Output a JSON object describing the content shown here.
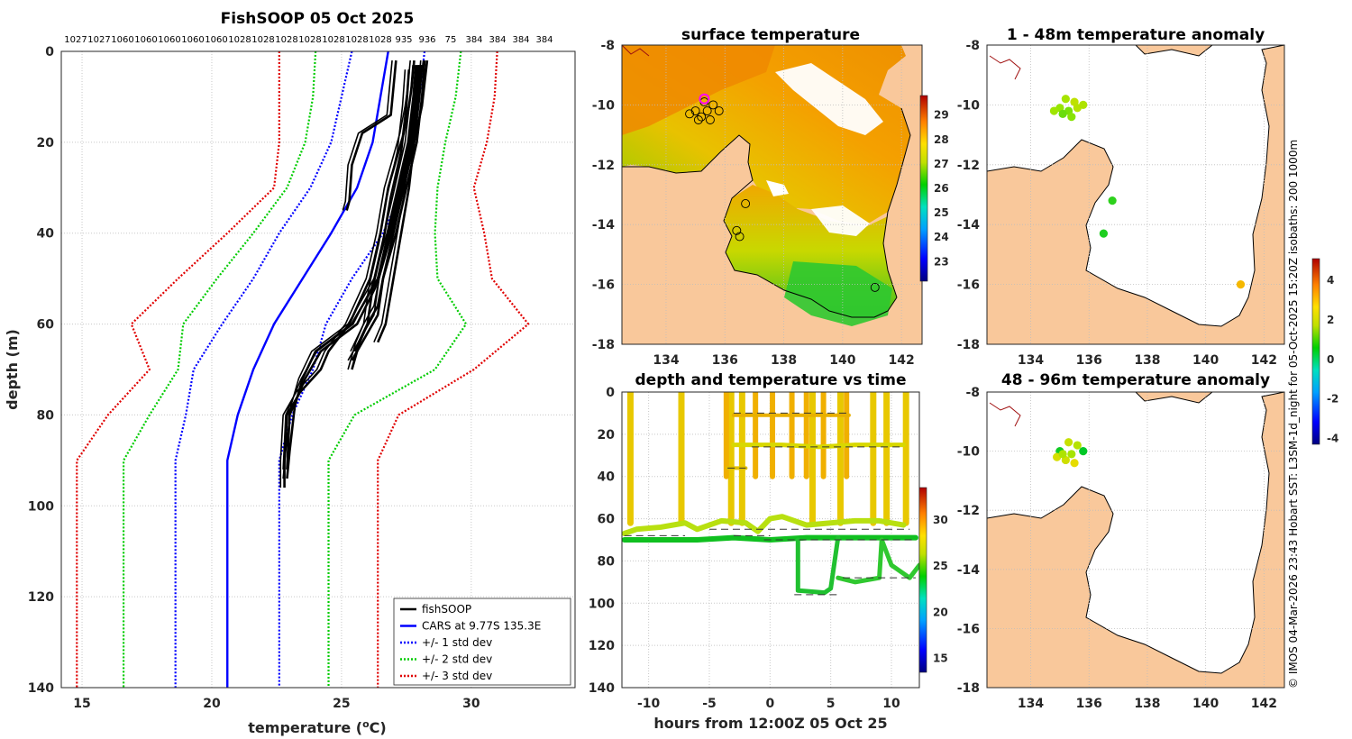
{
  "figure_title": "FishSOOP 05 Oct 2025",
  "colors": {
    "profile": "#000000",
    "cars": "#0000ff",
    "std1": "#0000ff",
    "std2": "#00cc00",
    "std3": "#e00000",
    "land": "#f9c89b",
    "grid": "#d0d0d0"
  },
  "side_text": "© IMOS 04-Mar-2026 23:43 Hobart SST: L3SM-1d_night for 05-Oct-2025 15:20Z isobaths: 200  1000m",
  "chart_data": [
    {
      "id": "profile",
      "type": "line",
      "xlabel": "temperature (°C)",
      "xlabel_main": "temperature (",
      "xlabel_deg": "o",
      "xlabel_end": "C)",
      "ylabel": "depth (m)",
      "xlim": [
        14.2,
        34.0
      ],
      "ylim": [
        140,
        0
      ],
      "xticks": [
        15,
        20,
        25,
        30
      ],
      "yticks": [
        0,
        20,
        40,
        60,
        80,
        100,
        120,
        140
      ],
      "top_labels": [
        "1027",
        "1027",
        "1060",
        "1060",
        "1060",
        "1060",
        "1060",
        "1028",
        "1028",
        "1028",
        "1028",
        "1028",
        "1028",
        "1028",
        "935",
        "936",
        "75",
        "384",
        "384",
        "384",
        "384"
      ],
      "legend": [
        {
          "label": "fishSOOP",
          "style": "solid",
          "color": "#000000"
        },
        {
          "label": "CARS at 9.77S 135.3E",
          "style": "solid",
          "color": "#0000ff"
        },
        {
          "label": "+/- 1 std dev",
          "style": "dotted",
          "color": "#0000ff"
        },
        {
          "label": "+/- 2 std dev",
          "style": "dotted",
          "color": "#00cc00"
        },
        {
          "label": "+/- 3 std dev",
          "style": "dotted",
          "color": "#e00000"
        }
      ],
      "depth_levels": [
        0,
        10,
        20,
        30,
        40,
        50,
        60,
        70,
        80,
        90,
        140
      ],
      "cars_mean": [
        26.8,
        26.5,
        26.2,
        25.6,
        24.6,
        23.5,
        22.4,
        21.6,
        21.0,
        20.6,
        20.6
      ],
      "std1_lo": [
        25.4,
        25.0,
        24.6,
        23.8,
        22.6,
        21.6,
        20.4,
        19.3,
        19.0,
        18.6,
        18.6
      ],
      "std1_hi": [
        28.2,
        28.0,
        27.8,
        27.4,
        26.6,
        25.4,
        24.4,
        23.9,
        23.1,
        22.6,
        22.6
      ],
      "std2_lo": [
        24.0,
        23.9,
        23.6,
        22.9,
        21.6,
        20.2,
        18.9,
        18.7,
        17.6,
        16.6,
        16.6
      ],
      "std2_hi": [
        29.6,
        29.4,
        29.0,
        28.7,
        28.6,
        28.7,
        29.8,
        28.6,
        25.5,
        24.5,
        24.5
      ],
      "std3_lo": [
        22.6,
        22.6,
        22.6,
        22.4,
        20.6,
        18.7,
        16.9,
        17.6,
        16.0,
        14.8,
        14.8
      ],
      "std3_hi": [
        31.0,
        30.9,
        30.6,
        30.1,
        30.5,
        30.8,
        32.2,
        30.1,
        27.2,
        26.4,
        26.4
      ],
      "profiles": [
        {
          "depth": [
            2,
            8,
            12,
            18,
            22,
            30,
            40,
            50,
            60,
            66,
            70,
            75,
            80,
            90,
            96
          ],
          "temp": [
            27.8,
            27.7,
            27.6,
            27.4,
            27.2,
            26.8,
            26.5,
            26.1,
            25.3,
            24.5,
            24.2,
            23.4,
            22.9,
            22.8,
            22.8
          ]
        },
        {
          "depth": [
            2,
            10,
            20,
            30,
            40,
            50,
            58,
            64,
            68
          ],
          "temp": [
            28.2,
            28.1,
            27.9,
            27.5,
            27.1,
            26.6,
            26.4,
            25.8,
            25.4
          ]
        },
        {
          "depth": [
            3,
            10,
            20,
            30,
            40,
            52,
            60,
            66,
            72,
            80,
            92
          ],
          "temp": [
            28.0,
            27.9,
            27.7,
            27.3,
            26.9,
            26.3,
            25.6,
            24.2,
            23.6,
            23.0,
            22.9
          ]
        },
        {
          "depth": [
            2,
            8,
            14,
            18,
            25,
            33,
            35
          ],
          "temp": [
            27.1,
            27.0,
            26.9,
            25.8,
            25.4,
            25.3,
            25.2
          ]
        },
        {
          "depth": [
            4,
            12,
            22,
            32,
            42,
            52,
            60,
            64,
            70
          ],
          "temp": [
            27.6,
            27.5,
            27.3,
            26.9,
            26.6,
            26.2,
            26.0,
            25.7,
            25.4
          ]
        },
        {
          "depth": [
            3,
            10,
            20,
            30,
            40,
            50,
            56,
            60,
            66
          ],
          "temp": [
            28.1,
            28.0,
            27.8,
            27.4,
            27.0,
            26.6,
            26.4,
            26.0,
            25.5
          ]
        },
        {
          "depth": [
            3,
            10,
            20,
            30,
            40,
            50,
            60,
            66,
            72,
            78,
            88,
            94
          ],
          "temp": [
            27.9,
            27.8,
            27.6,
            27.2,
            26.8,
            26.4,
            25.4,
            24.0,
            23.5,
            23.2,
            23.0,
            22.9
          ]
        },
        {
          "depth": [
            2,
            12,
            20,
            30,
            40,
            50,
            60,
            64
          ],
          "temp": [
            28.3,
            28.1,
            27.8,
            27.6,
            27.3,
            27.0,
            26.7,
            26.4
          ]
        }
      ]
    },
    {
      "id": "sst_map",
      "type": "heatmap",
      "title": "surface temperature",
      "xlim": [
        132.5,
        142.7
      ],
      "ylim": [
        -18,
        -8
      ],
      "xticks": [
        134,
        136,
        138,
        140,
        142
      ],
      "yticks": [
        -8,
        -10,
        -12,
        -14,
        -16,
        -18
      ],
      "colorbar": {
        "min": 22.2,
        "max": 29.8,
        "ticks": [
          23,
          24,
          25,
          26,
          27,
          28,
          29
        ]
      },
      "station_markers": [
        [
          135.0,
          -10.2
        ],
        [
          135.2,
          -10.4
        ],
        [
          135.4,
          -10.2
        ],
        [
          135.3,
          -9.9
        ],
        [
          135.6,
          -10.0
        ],
        [
          134.8,
          -10.3
        ],
        [
          135.1,
          -10.5
        ],
        [
          135.5,
          -10.5
        ],
        [
          135.8,
          -10.2
        ],
        [
          136.7,
          -13.3
        ],
        [
          136.4,
          -14.2
        ],
        [
          136.5,
          -14.4
        ],
        [
          141.1,
          -16.1
        ]
      ],
      "highlight_marker": [
        135.3,
        -9.8
      ]
    },
    {
      "id": "time_series",
      "type": "scatter",
      "title": "depth and temperature vs time",
      "xlabel": "hours from 12:00Z 05 Oct 25",
      "xlim": [
        -12.2,
        12.3
      ],
      "ylim": [
        140,
        0
      ],
      "xticks": [
        -10,
        -5,
        0,
        5,
        10
      ],
      "yticks": [
        0,
        20,
        40,
        60,
        80,
        100,
        120,
        140
      ],
      "colorbar": {
        "min": 13.5,
        "max": 33.5,
        "ticks": [
          15,
          20,
          25,
          30
        ]
      }
    },
    {
      "id": "anom_shallow",
      "type": "scatter",
      "title": "1 - 48m temperature anomaly",
      "xlim": [
        132.5,
        142.7
      ],
      "ylim": [
        -18,
        -8
      ],
      "xticks": [
        134,
        136,
        138,
        140,
        142
      ],
      "yticks": [
        -8,
        -10,
        -12,
        -14,
        -16,
        -18
      ],
      "points": [
        {
          "x": 135.2,
          "y": -9.8,
          "v": 1.2
        },
        {
          "x": 135.5,
          "y": -9.9,
          "v": 1.5
        },
        {
          "x": 135.0,
          "y": -10.1,
          "v": 1.0
        },
        {
          "x": 135.3,
          "y": -10.2,
          "v": 0.8
        },
        {
          "x": 135.6,
          "y": -10.1,
          "v": 1.4
        },
        {
          "x": 134.8,
          "y": -10.2,
          "v": 1.1
        },
        {
          "x": 135.1,
          "y": -10.3,
          "v": 0.7
        },
        {
          "x": 135.4,
          "y": -10.4,
          "v": 0.9
        },
        {
          "x": 135.8,
          "y": -10.0,
          "v": 1.3
        },
        {
          "x": 136.8,
          "y": -13.2,
          "v": 0.3
        },
        {
          "x": 136.5,
          "y": -14.3,
          "v": 0.2
        },
        {
          "x": 141.2,
          "y": -16.0,
          "v": 2.6
        }
      ],
      "colorbar": {
        "min": -4.3,
        "max": 5.1,
        "ticks": [
          -4,
          -2,
          0,
          2,
          4
        ]
      }
    },
    {
      "id": "anom_deep",
      "type": "scatter",
      "title": "48 - 96m temperature anomaly",
      "xlim": [
        132.5,
        142.7
      ],
      "ylim": [
        -18,
        -8
      ],
      "xticks": [
        134,
        136,
        138,
        140,
        142
      ],
      "yticks": [
        -8,
        -10,
        -12,
        -14,
        -16,
        -18
      ],
      "points": [
        {
          "x": 135.3,
          "y": -9.7,
          "v": 1.6
        },
        {
          "x": 135.6,
          "y": -9.8,
          "v": 1.4
        },
        {
          "x": 135.0,
          "y": -10.0,
          "v": 0.1
        },
        {
          "x": 135.8,
          "y": -10.0,
          "v": 0.0
        },
        {
          "x": 135.4,
          "y": -10.1,
          "v": 1.2
        },
        {
          "x": 134.9,
          "y": -10.2,
          "v": 1.8
        },
        {
          "x": 135.2,
          "y": -10.3,
          "v": 1.7
        },
        {
          "x": 135.5,
          "y": -10.4,
          "v": 2.0
        },
        {
          "x": 135.1,
          "y": -10.1,
          "v": 1.3
        }
      ]
    }
  ]
}
